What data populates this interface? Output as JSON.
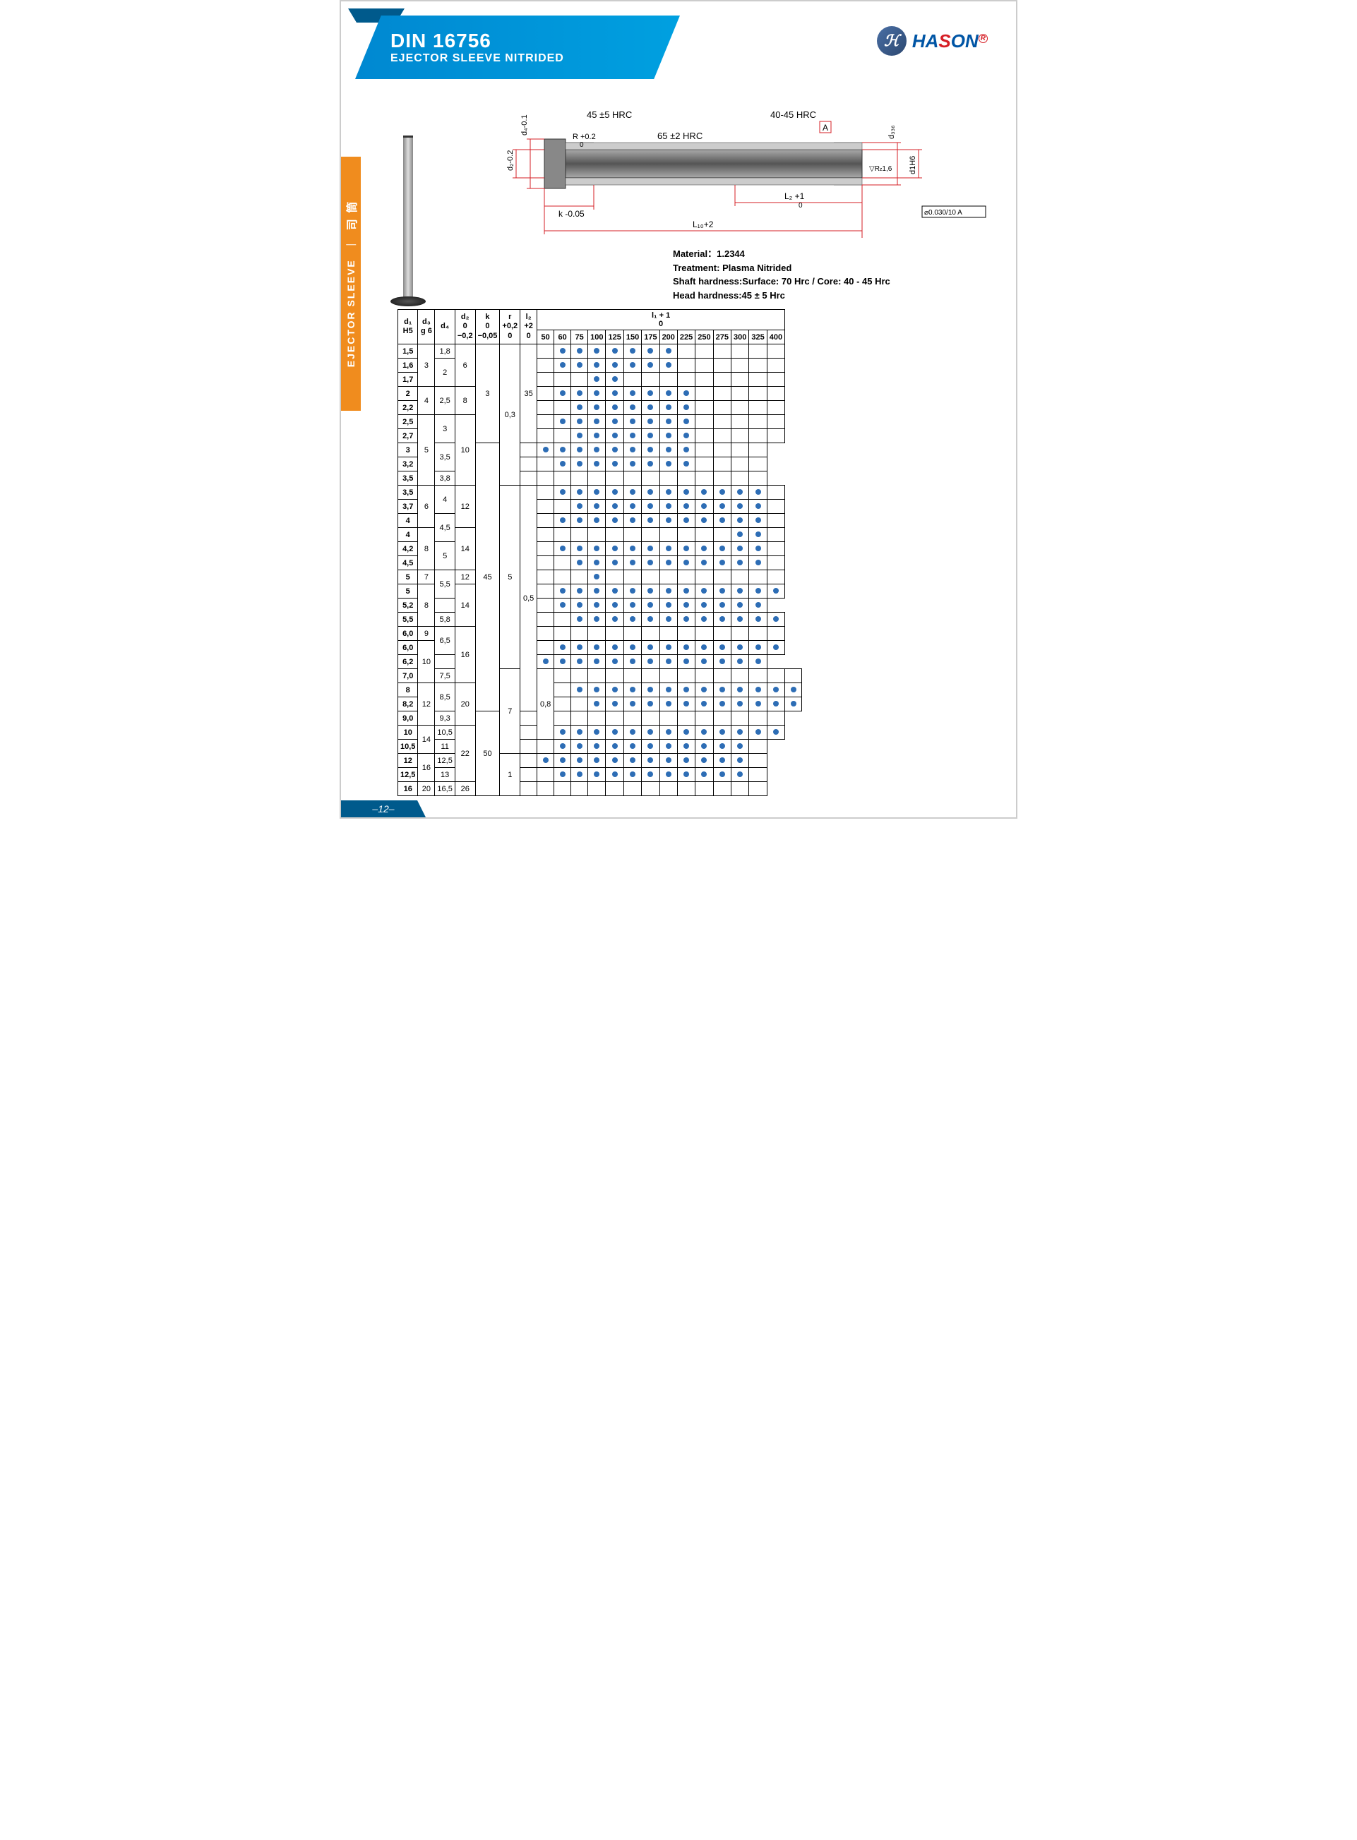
{
  "header": {
    "title": "DIN 16756",
    "subtitle": "EJECTOR SLEEVE NITRIDED",
    "logo_text": "HASON",
    "logo_letter": "ℋ"
  },
  "side_tab": {
    "en": "EJECTOR SLEEVE",
    "cn": "司 筒"
  },
  "diagram": {
    "labels": {
      "hrc45": "45 ±5 HRC",
      "hrc4045": "40-45 HRC",
      "hrc65": "65 ±2 HRC",
      "d4": "d₄-0.1",
      "d2": "d₂-0.2",
      "d3": "d₃₃₆",
      "d1": "d1H6",
      "R": "R +0.2",
      "R0": "0",
      "Rz": "R_z1,6",
      "A": "A",
      "k": "k -0.05",
      "k0": "0",
      "L2": "L₂ +1",
      "L20": "0",
      "L1": "L₁₀+2",
      "tol": "⌀0.030/10 A"
    },
    "colors": {
      "dim": "#d61f26",
      "part": "#6b6b6b",
      "hatch": "#999"
    }
  },
  "material": {
    "l1": "Material：1.2344",
    "l2": "Treatment: Plasma Nitrided",
    "l3": "Shaft hardness:Surface: 70 Hrc / Core: 40 - 45 Hrc",
    "l4": "Head hardness:45 ± 5 Hrc"
  },
  "table": {
    "head1": [
      "d₁\nH5",
      "d₃\ng 6",
      "d₄",
      "d₂\n0\n−0,2",
      "k\n0\n−0,05",
      "r\n+0,2\n0",
      "l₂\n+2\n0"
    ],
    "l1_header": "l₁ + 1\n0",
    "l1_cols": [
      "50",
      "60",
      "75",
      "100",
      "125",
      "150",
      "175",
      "200",
      "225",
      "250",
      "275",
      "300",
      "325",
      "400"
    ],
    "rows": [
      {
        "d1": "1,5",
        "d3": "3",
        "d3_span": 3,
        "d4": "1,8",
        "d2": "6",
        "d2_span": 3,
        "k": "3",
        "k_span": 7,
        "r": "0,3",
        "r_span": 10,
        "l2": "35",
        "l2_span": 7,
        "dots": [
          0,
          1,
          1,
          1,
          1,
          1,
          1,
          1,
          0,
          0,
          0,
          0,
          0,
          0
        ]
      },
      {
        "d1": "1,6",
        "d4": "2",
        "d4_span": 2,
        "dots": [
          0,
          1,
          1,
          1,
          1,
          1,
          1,
          1,
          0,
          0,
          0,
          0,
          0,
          0
        ]
      },
      {
        "d1": "1,7",
        "dots": [
          0,
          0,
          0,
          1,
          1,
          0,
          0,
          0,
          0,
          0,
          0,
          0,
          0,
          0
        ]
      },
      {
        "d1": "2",
        "d3": "4",
        "d3_span": 2,
        "d4": "2,5",
        "d4_span": 2,
        "d2": "8",
        "d2_span": 2,
        "dots": [
          0,
          1,
          1,
          1,
          1,
          1,
          1,
          1,
          1,
          0,
          0,
          0,
          0,
          0
        ]
      },
      {
        "d1": "2,2",
        "dots": [
          0,
          0,
          1,
          1,
          1,
          1,
          1,
          1,
          1,
          0,
          0,
          0,
          0,
          0
        ]
      },
      {
        "d1": "2,5",
        "d3": "5",
        "d3_span": 5,
        "d4": "3",
        "d4_span": 2,
        "d2": "10",
        "d2_span": 5,
        "dots": [
          0,
          1,
          1,
          1,
          1,
          1,
          1,
          1,
          1,
          0,
          0,
          0,
          0,
          0
        ]
      },
      {
        "d1": "2,7",
        "dots": [
          0,
          0,
          1,
          1,
          1,
          1,
          1,
          1,
          1,
          0,
          0,
          0,
          0,
          0
        ]
      },
      {
        "d1": "3",
        "d4": "3,5",
        "d4_span": 2,
        "l2": "45",
        "l2_span": 19,
        "dots": [
          0,
          1,
          1,
          1,
          1,
          1,
          1,
          1,
          1,
          1,
          0,
          0,
          0,
          0
        ]
      },
      {
        "d1": "3,2",
        "dots": [
          0,
          0,
          1,
          1,
          1,
          1,
          1,
          1,
          1,
          1,
          0,
          0,
          0,
          0
        ]
      },
      {
        "d1": "3,5",
        "d4": "3,8",
        "dots": [
          0,
          0,
          0,
          0,
          0,
          0,
          0,
          0,
          0,
          0,
          0,
          0,
          0,
          0
        ]
      },
      {
        "d1": "3,5",
        "d3": "6",
        "d3_span": 3,
        "d4": "4",
        "d4_span": 2,
        "d2": "12",
        "d2_span": 3,
        "k": "5",
        "k_span": 13,
        "r": "0,5",
        "r_span": 16,
        "dots": [
          0,
          1,
          1,
          1,
          1,
          1,
          1,
          1,
          1,
          1,
          1,
          1,
          1,
          0
        ]
      },
      {
        "d1": "3,7",
        "dots": [
          0,
          0,
          1,
          1,
          1,
          1,
          1,
          1,
          1,
          1,
          1,
          1,
          1,
          0
        ]
      },
      {
        "d1": "4",
        "d4": "4,5",
        "d4_span": 2,
        "dots": [
          0,
          1,
          1,
          1,
          1,
          1,
          1,
          1,
          1,
          1,
          1,
          1,
          1,
          0
        ]
      },
      {
        "d1": "4",
        "d3": "8",
        "d3_span": 3,
        "d2": "14",
        "d2_span": 3,
        "dots": [
          0,
          0,
          0,
          0,
          0,
          0,
          0,
          0,
          0,
          0,
          0,
          1,
          1,
          0
        ]
      },
      {
        "d1": "4,2",
        "d4": "5",
        "d4_span": 2,
        "dots": [
          0,
          1,
          1,
          1,
          1,
          1,
          1,
          1,
          1,
          1,
          1,
          1,
          1,
          0
        ]
      },
      {
        "d1": "4,5",
        "dots": [
          0,
          0,
          1,
          1,
          1,
          1,
          1,
          1,
          1,
          1,
          1,
          1,
          1,
          0
        ]
      },
      {
        "d1": "5",
        "d3": "7",
        "d4": "5,5",
        "d4_span": 2,
        "d2": "12",
        "dots": [
          0,
          0,
          0,
          1,
          0,
          0,
          0,
          0,
          0,
          0,
          0,
          0,
          0,
          0
        ]
      },
      {
        "d1": "5",
        "d3": "8",
        "d3_span": 3,
        "d2": "14",
        "d2_span": 3,
        "dots": [
          0,
          1,
          1,
          1,
          1,
          1,
          1,
          1,
          1,
          1,
          1,
          1,
          1,
          1
        ]
      },
      {
        "d1": "5,2",
        "dots": [
          0,
          0,
          1,
          1,
          1,
          1,
          1,
          1,
          1,
          1,
          1,
          1,
          1,
          1
        ]
      },
      {
        "d1": "5,5",
        "d4": "5,8",
        "dots": [
          0,
          0,
          1,
          1,
          1,
          1,
          1,
          1,
          1,
          1,
          1,
          1,
          1,
          1
        ]
      },
      {
        "d1": "6,0",
        "d3": "9",
        "d4": "6,5",
        "d4_span": 2,
        "d2": "16",
        "d2_span": 4,
        "dots": [
          0,
          0,
          0,
          0,
          0,
          0,
          0,
          0,
          0,
          0,
          0,
          0,
          0,
          0
        ]
      },
      {
        "d1": "6,0",
        "d3": "10",
        "d3_span": 3,
        "dots": [
          0,
          1,
          1,
          1,
          1,
          1,
          1,
          1,
          1,
          1,
          1,
          1,
          1,
          1
        ]
      },
      {
        "d1": "6,2",
        "dots": [
          0,
          1,
          1,
          1,
          1,
          1,
          1,
          1,
          1,
          1,
          1,
          1,
          1,
          1
        ]
      },
      {
        "d1": "7,0",
        "d4": "7,5",
        "k": "7",
        "k_span": 6,
        "r": "0,8",
        "r_span": 5,
        "dots": [
          0,
          0,
          0,
          0,
          0,
          0,
          0,
          0,
          0,
          0,
          0,
          0,
          0,
          0
        ]
      },
      {
        "d1": "8",
        "d3": "12",
        "d3_span": 3,
        "d4": "8,5",
        "d4_span": 2,
        "d2": "20",
        "d2_span": 3,
        "dots": [
          0,
          1,
          1,
          1,
          1,
          1,
          1,
          1,
          1,
          1,
          1,
          1,
          1,
          1
        ]
      },
      {
        "d1": "8,2",
        "dots": [
          0,
          0,
          1,
          1,
          1,
          1,
          1,
          1,
          1,
          1,
          1,
          1,
          1,
          1
        ]
      },
      {
        "d1": "9,0",
        "d4": "9,3",
        "l2": "50",
        "l2_span": 6,
        "dots": [
          0,
          0,
          0,
          0,
          0,
          0,
          0,
          0,
          0,
          0,
          0,
          0,
          0,
          0
        ]
      },
      {
        "d1": "10",
        "d3": "14",
        "d3_span": 2,
        "d4": "10,5",
        "d2": "22",
        "d2_span": 4,
        "dots": [
          0,
          1,
          1,
          1,
          1,
          1,
          1,
          1,
          1,
          1,
          1,
          1,
          1,
          1
        ]
      },
      {
        "d1": "10,5",
        "d4": "11",
        "dots": [
          0,
          0,
          1,
          1,
          1,
          1,
          1,
          1,
          1,
          1,
          1,
          1,
          1,
          0
        ]
      },
      {
        "d1": "12",
        "d3": "16",
        "d3_span": 2,
        "d4": "12,5",
        "r": "1",
        "r_span": 3,
        "dots": [
          0,
          1,
          1,
          1,
          1,
          1,
          1,
          1,
          1,
          1,
          1,
          1,
          1,
          0
        ]
      },
      {
        "d1": "12,5",
        "d4": "13",
        "dots": [
          0,
          0,
          1,
          1,
          1,
          1,
          1,
          1,
          1,
          1,
          1,
          1,
          1,
          0
        ]
      },
      {
        "d1": "16",
        "d3": "20",
        "d4": "16,5",
        "d2": "26",
        "dots": [
          0,
          0,
          0,
          0,
          0,
          0,
          0,
          0,
          0,
          0,
          0,
          0,
          0,
          0
        ]
      }
    ]
  },
  "footer": {
    "page": "–12–"
  }
}
